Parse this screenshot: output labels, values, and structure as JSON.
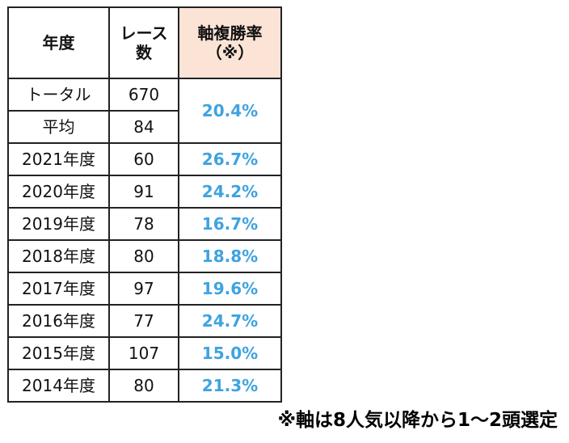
{
  "table": {
    "headers": {
      "year_label": "年度",
      "races_line1": "レース",
      "races_line2": "数",
      "rate_line1": "軸複勝率",
      "rate_line2": "（※）"
    },
    "summary": {
      "total_label": "トータル",
      "total_races": "670",
      "average_label": "平均",
      "average_races": "84",
      "combined_rate": "20.4%"
    },
    "rows": [
      {
        "year": "2021年度",
        "races": "60",
        "rate": "26.7%"
      },
      {
        "year": "2020年度",
        "races": "91",
        "rate": "24.2%"
      },
      {
        "year": "2019年度",
        "races": "78",
        "rate": "16.7%"
      },
      {
        "year": "2018年度",
        "races": "80",
        "rate": "18.8%"
      },
      {
        "year": "2017年度",
        "races": "97",
        "rate": "19.6%"
      },
      {
        "year": "2016年度",
        "races": "77",
        "rate": "24.7%"
      },
      {
        "year": "2015年度",
        "races": "107",
        "rate": "15.0%"
      },
      {
        "year": "2014年度",
        "races": "80",
        "rate": "21.3%"
      }
    ]
  },
  "footnote": "※軸は8人気以降から1～2頭選定",
  "colors": {
    "rate_text": "#3fa3e0",
    "rate_header_bg": "#fbe4d6",
    "border": "#222222"
  }
}
